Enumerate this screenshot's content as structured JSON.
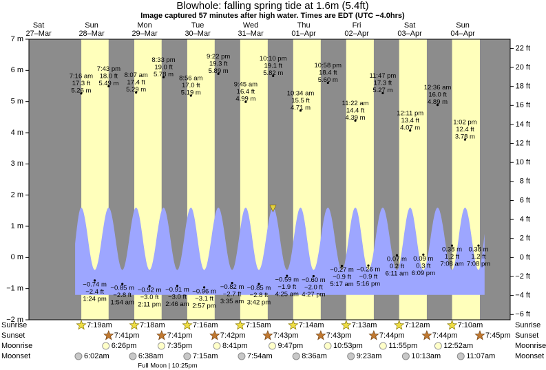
{
  "chart_data": {
    "type": "tide",
    "title": "Blowhole: falling  spring tide at 1.6m (5.4ft)",
    "subtitle": "Image captured 57 minutes after high water. Times are EDT (UTC −4.0hrs)",
    "ylim": [
      -2,
      7
    ],
    "yticks": [
      {
        "value": -2,
        "label": "−2 m"
      },
      {
        "value": -1,
        "label": "−1 m"
      },
      {
        "value": 0,
        "label": "0 m"
      },
      {
        "value": 1,
        "label": "1 m"
      },
      {
        "value": 2,
        "label": "2 m"
      },
      {
        "value": 3,
        "label": "3 m"
      },
      {
        "value": 4,
        "label": "4 m"
      },
      {
        "value": 5,
        "label": "5 m"
      },
      {
        "value": 6,
        "label": "6 m"
      },
      {
        "value": 7,
        "label": "7 m"
      }
    ],
    "y2lim": [
      -6.56,
      22.97
    ],
    "y2ticks": [
      {
        "value": -6,
        "label": "−6 ft"
      },
      {
        "value": -4,
        "label": "−4 ft"
      },
      {
        "value": -2,
        "label": "−2 ft"
      },
      {
        "value": 0,
        "label": "0 ft"
      },
      {
        "value": 2,
        "label": "2 ft"
      },
      {
        "value": 4,
        "label": "4 ft"
      },
      {
        "value": 6,
        "label": "6 ft"
      },
      {
        "value": 8,
        "label": "8 ft"
      },
      {
        "value": 10,
        "label": "10 ft"
      },
      {
        "value": 12,
        "label": "12 ft"
      },
      {
        "value": 14,
        "label": "14 ft"
      },
      {
        "value": 16,
        "label": "16 ft"
      },
      {
        "value": 18,
        "label": "18 ft"
      },
      {
        "value": 20,
        "label": "20 ft"
      },
      {
        "value": 22,
        "label": "22 ft"
      }
    ],
    "row_labels": {
      "sunrise": "Sunrise",
      "sunset": "Sunset",
      "moonrise": "Moonrise",
      "moonset": "Moonset"
    },
    "days": [
      {
        "weekday": "Sat",
        "date": "27–Mar",
        "sunrise": null,
        "sunset": null,
        "moonrise": null,
        "moonset": null,
        "tides": []
      },
      {
        "weekday": "Sun",
        "date": "28–Mar",
        "sunrise": "7:19am",
        "sunset": "7:41pm",
        "moonrise": "6:26pm",
        "moonset": "6:02am",
        "tides": [
          {
            "time": "7:16 am",
            "value": 5.26,
            "value_label": "5.26 m",
            "feet_label": "17.3 ft"
          },
          {
            "time": "1:24 pm",
            "value": -0.74,
            "value_label": "−0.74 m",
            "feet_label": "−2.4 ft"
          },
          {
            "time": "7:43 pm",
            "value": 5.49,
            "value_label": "5.49 m",
            "feet_label": "18.0 ft"
          }
        ]
      },
      {
        "weekday": "Mon",
        "date": "29–Mar",
        "sunrise": "7:18am",
        "sunset": "7:41pm",
        "moonrise": "7:35pm",
        "moonset": "6:38am",
        "moon_phase": "Full Moon | 10:25pm",
        "tides": [
          {
            "time": "1:54 am",
            "value": -0.85,
            "value_label": "−0.85 m",
            "feet_label": "−2.8 ft"
          },
          {
            "time": "8:07 am",
            "value": 5.29,
            "value_label": "5.29 m",
            "feet_label": "17.4 ft"
          },
          {
            "time": "2:11 pm",
            "value": -0.92,
            "value_label": "−0.92 m",
            "feet_label": "−3.0 ft"
          },
          {
            "time": "8:33 pm",
            "value": 5.78,
            "value_label": "5.78 m",
            "feet_label": "19.0 ft"
          }
        ]
      },
      {
        "weekday": "Tue",
        "date": "30–Mar",
        "sunrise": "7:16am",
        "sunset": "7:42pm",
        "moonrise": "8:41pm",
        "moonset": "7:15am",
        "tides": [
          {
            "time": "2:46 am",
            "value": -0.91,
            "value_label": "−0.91 m",
            "feet_label": "−3.0 ft"
          },
          {
            "time": "8:56 am",
            "value": 5.19,
            "value_label": "5.19 m",
            "feet_label": "17.0 ft"
          },
          {
            "time": "2:57 pm",
            "value": -0.96,
            "value_label": "−0.96 m",
            "feet_label": "−3.1 ft"
          },
          {
            "time": "9:22 pm",
            "value": 5.89,
            "value_label": "5.89 m",
            "feet_label": "19.3 ft"
          }
        ]
      },
      {
        "weekday": "Wed",
        "date": "31–Mar",
        "sunrise": "7:15am",
        "sunset": "7:43pm",
        "moonrise": "9:47pm",
        "moonset": "7:54am",
        "tides": [
          {
            "time": "3:35 am",
            "value": -0.82,
            "value_label": "−0.82 m",
            "feet_label": "−2.7 ft"
          },
          {
            "time": "9:45 am",
            "value": 4.99,
            "value_label": "4.99 m",
            "feet_label": "16.4 ft"
          },
          {
            "time": "3:42 pm",
            "value": -0.85,
            "value_label": "−0.85 m",
            "feet_label": "−2.8 ft"
          },
          {
            "time": "10:10 pm",
            "value": 5.82,
            "value_label": "5.82 m",
            "feet_label": "19.1 ft"
          }
        ]
      },
      {
        "weekday": "Thu",
        "date": "01–Apr",
        "sunrise": "7:14am",
        "sunset": "7:43pm",
        "moonrise": "10:53pm",
        "moonset": "8:36am",
        "tides": [
          {
            "time": "4:25 am",
            "value": -0.59,
            "value_label": "−0.59 m",
            "feet_label": "−1.9 ft"
          },
          {
            "time": "10:34 am",
            "value": 4.71,
            "value_label": "4.71 m",
            "feet_label": "15.5 ft"
          },
          {
            "time": "4:27 pm",
            "value": -0.6,
            "value_label": "−0.60 m",
            "feet_label": "−2.0 ft"
          },
          {
            "time": "10:58 pm",
            "value": 5.6,
            "value_label": "5.60 m",
            "feet_label": "18.4 ft"
          }
        ]
      },
      {
        "weekday": "Fri",
        "date": "02–Apr",
        "sunrise": "7:13am",
        "sunset": "7:44pm",
        "moonrise": "11:55pm",
        "moonset": "9:23am",
        "tides": [
          {
            "time": "5:17 am",
            "value": -0.27,
            "value_label": "−0.27 m",
            "feet_label": "−0.9 ft"
          },
          {
            "time": "11:22 am",
            "value": 4.39,
            "value_label": "4.39 m",
            "feet_label": "14.4 ft"
          },
          {
            "time": "5:16 pm",
            "value": -0.26,
            "value_label": "−0.26 m",
            "feet_label": "−0.9 ft"
          },
          {
            "time": "11:47 pm",
            "value": 5.27,
            "value_label": "5.27 m",
            "feet_label": "17.3 ft"
          }
        ]
      },
      {
        "weekday": "Sat",
        "date": "03–Apr",
        "sunrise": "7:12am",
        "sunset": "7:44pm",
        "moonrise": null,
        "moonset": "10:13am",
        "tides": [
          {
            "time": "6:11 am",
            "value": 0.07,
            "value_label": "0.07 m",
            "feet_label": "0.2 ft"
          },
          {
            "time": "12:11 pm",
            "value": 4.07,
            "value_label": "4.07 m",
            "feet_label": "13.4 ft"
          },
          {
            "time": "6:09 pm",
            "value": 0.09,
            "value_label": "0.09 m",
            "feet_label": "0.3 ft"
          }
        ]
      },
      {
        "weekday": "Sun",
        "date": "04–Apr",
        "sunrise": "7:10am",
        "sunset": "7:45pm",
        "moonrise": "12:52am",
        "moonset": "11:07am",
        "tides": [
          {
            "time": "12:36 am",
            "value": 4.89,
            "value_label": "4.89 m",
            "feet_label": "16.0 ft"
          },
          {
            "time": "7:08 am",
            "value": 0.38,
            "value_label": "0.38 m",
            "feet_label": "1.2 ft"
          },
          {
            "time": "1:02 pm",
            "value": 3.78,
            "value_label": "3.78 m",
            "feet_label": "12.4 ft"
          },
          {
            "time": "7:08 pm",
            "value": 0.38,
            "value_label": "0.38 m",
            "feet_label": "1.2 ft"
          }
        ]
      }
    ]
  }
}
